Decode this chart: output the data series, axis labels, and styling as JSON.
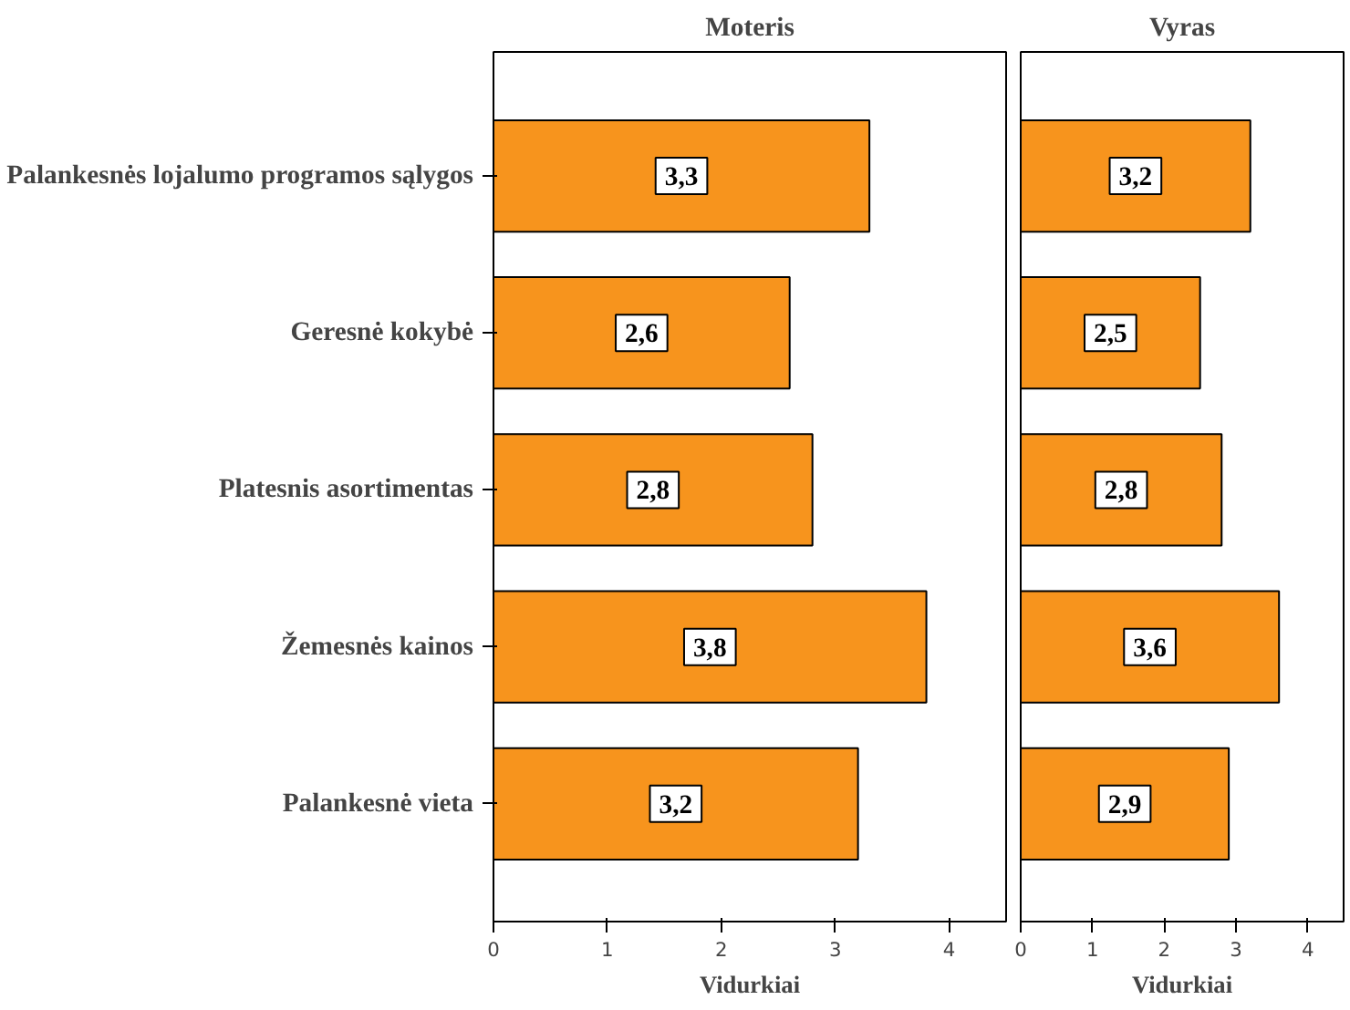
{
  "chart_data": [
    {
      "type": "bar",
      "orientation": "horizontal",
      "title": "Moteris",
      "xlabel": "Vidurkiai",
      "categories": [
        "Palankesnės lojalumo programos sąlygos",
        "Geresnė kokybė",
        "Platesnis asortimentas",
        "Žemesnės kainos",
        "Palankesnė vieta"
      ],
      "values": [
        3.3,
        2.6,
        2.8,
        3.8,
        3.2
      ],
      "value_labels": [
        "3,3",
        "2,6",
        "2,8",
        "3,8",
        "3,2"
      ],
      "color": "#f7941d",
      "xlim": [
        0,
        4.5
      ],
      "xticks": [
        0,
        1,
        2,
        3,
        4
      ],
      "grid": false
    },
    {
      "type": "bar",
      "orientation": "horizontal",
      "title": "Vyras",
      "xlabel": "Vidurkiai",
      "values": [
        3.2,
        2.5,
        2.8,
        3.6,
        2.9
      ],
      "value_labels": [
        "3,2",
        "2,5",
        "2,8",
        "3,6",
        "2,9"
      ],
      "color": "#f7941d",
      "xlim": [
        0,
        4.5
      ],
      "xticks": [
        0,
        1,
        2,
        3,
        4
      ],
      "grid": false,
      "tick_labels": "x"
    }
  ]
}
